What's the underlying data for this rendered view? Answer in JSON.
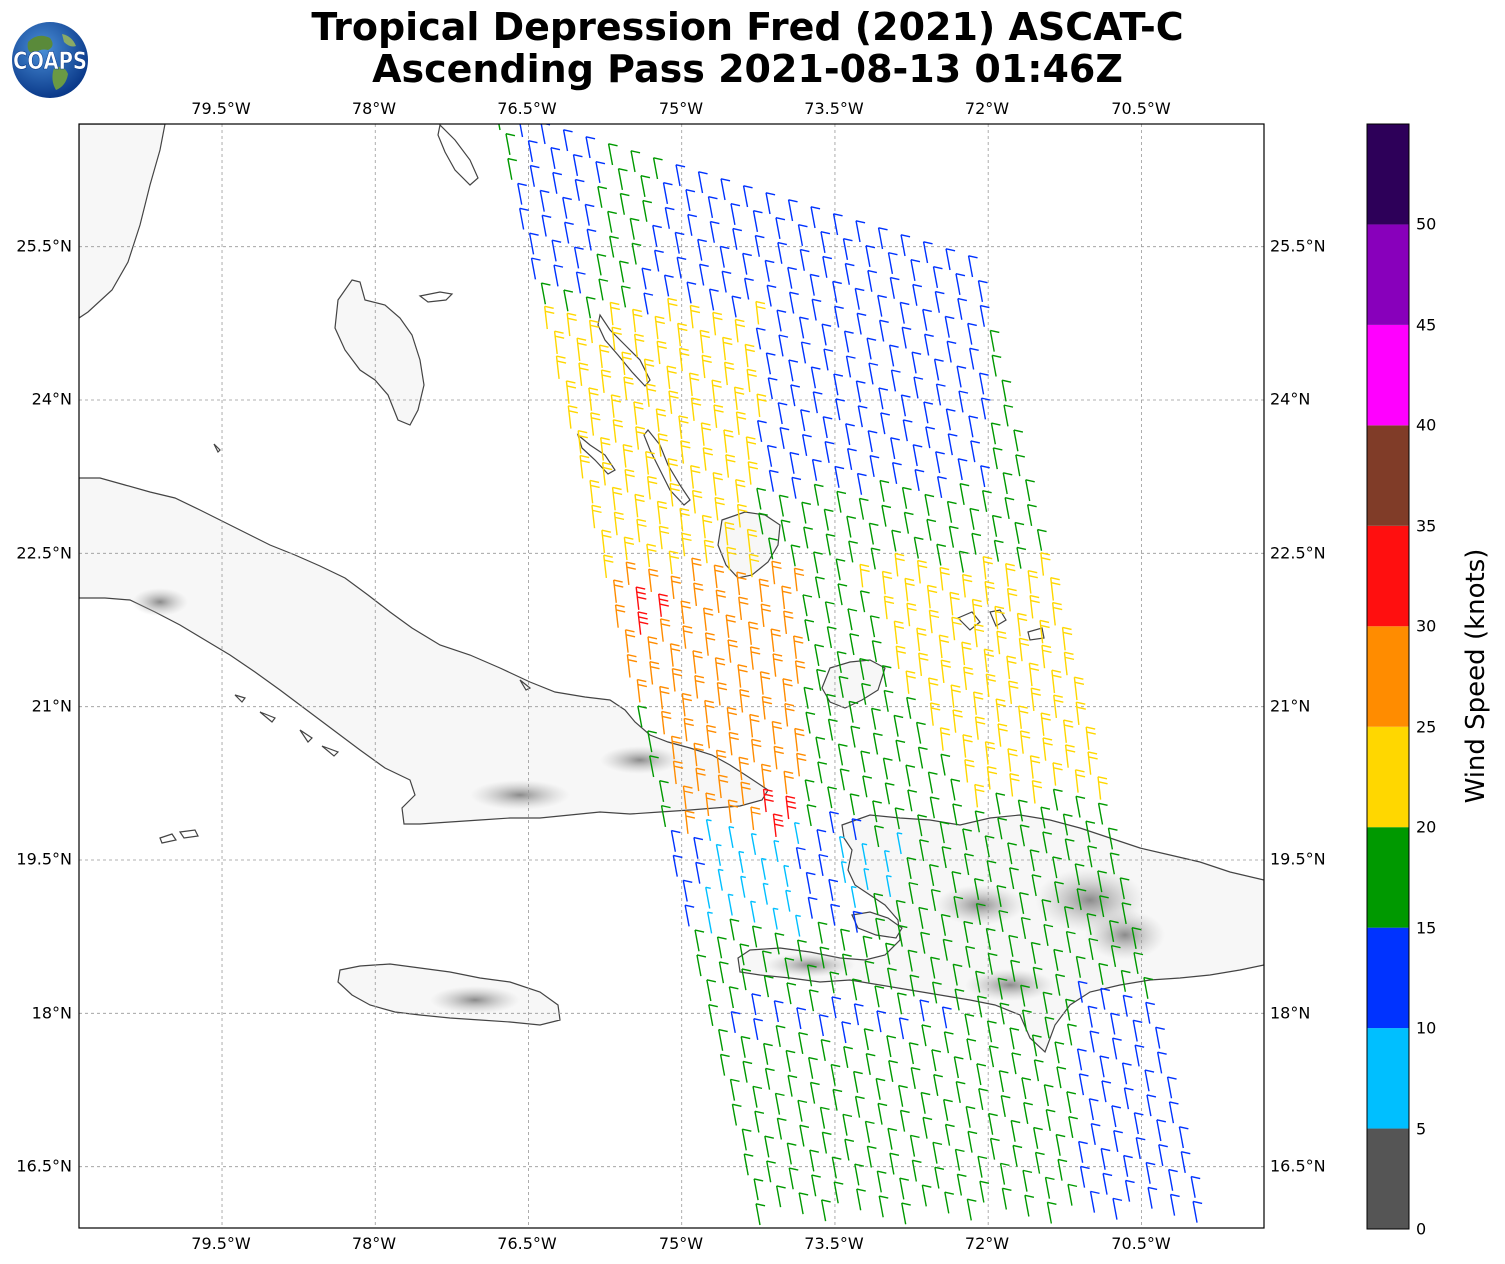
{
  "title": {
    "line1": "Tropical Depression Fred (2021) ASCAT-C",
    "line2": "Ascending Pass 2021-08-13 01:46Z"
  },
  "logo": {
    "text": "COAPS",
    "icon": "globe-icon"
  },
  "map": {
    "lon_ticks": [
      "79.5°W",
      "78°W",
      "76.5°W",
      "75°W",
      "73.5°W",
      "72°W",
      "70.5°W"
    ],
    "lat_ticks": [
      "25.5°N",
      "24°N",
      "22.5°N",
      "21°N",
      "19.5°N",
      "18°N",
      "16.5°N"
    ],
    "lon_values": [
      -79.5,
      -78,
      -76.5,
      -75,
      -73.5,
      -72,
      -70.5
    ],
    "lat_values": [
      25.5,
      24,
      22.5,
      21,
      19.5,
      18,
      16.5
    ],
    "lon_range": [
      -80.9,
      -69.3
    ],
    "lat_range": [
      15.9,
      26.7
    ],
    "gridlines": true,
    "land_color": "#f7f7f7",
    "coast_color": "#444444"
  },
  "colorbar": {
    "title": "Wind Speed (knots)",
    "ticks": [
      "0",
      "5",
      "10",
      "15",
      "20",
      "25",
      "30",
      "35",
      "40",
      "45",
      "50"
    ],
    "bins": [
      {
        "from": 0,
        "to": 5,
        "color": "#555555"
      },
      {
        "from": 5,
        "to": 10,
        "color": "#00bfff"
      },
      {
        "from": 10,
        "to": 15,
        "color": "#0033ff"
      },
      {
        "from": 15,
        "to": 20,
        "color": "#009900"
      },
      {
        "from": 20,
        "to": 25,
        "color": "#ffd700"
      },
      {
        "from": 25,
        "to": 30,
        "color": "#ff8c00"
      },
      {
        "from": 30,
        "to": 35,
        "color": "#ff0f0f"
      },
      {
        "from": 35,
        "to": 40,
        "color": "#803c28"
      },
      {
        "from": 40,
        "to": 45,
        "color": "#ff00ff"
      },
      {
        "from": 45,
        "to": 50,
        "color": "#8800bb"
      },
      {
        "from": 50,
        "to": 55,
        "color": "#2d0059"
      }
    ]
  }
}
